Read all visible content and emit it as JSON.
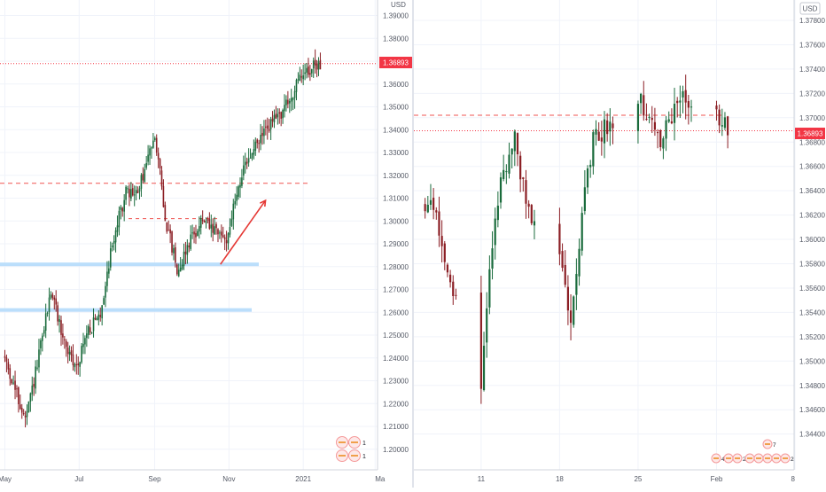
{
  "charts": [
    {
      "id": "left",
      "axis_unit": "USD",
      "y_ticks": [
        "1.39000",
        "1.38000",
        "1.37000",
        "1.36000",
        "1.35000",
        "1.34000",
        "1.33000",
        "1.32000",
        "1.31000",
        "1.30000",
        "1.29000",
        "1.28000",
        "1.27000",
        "1.26000",
        "1.25000",
        "1.24000",
        "1.23000",
        "1.22000",
        "1.21000",
        "1.20000"
      ],
      "x_ticks": [
        "May",
        "Jul",
        "Sep",
        "Nov",
        "2021",
        "Ma"
      ],
      "last_price_label": "1.36893",
      "badges": [
        {
          "text": "4"
        },
        {
          "text": "1"
        },
        {
          "text": "7"
        },
        {
          "text": "1"
        }
      ]
    },
    {
      "id": "right",
      "axis_unit": "USD",
      "y_ticks": [
        "1.37800",
        "1.37600",
        "1.37400",
        "1.37200",
        "1.37000",
        "1.36800",
        "1.36600",
        "1.36400",
        "1.36200",
        "1.36000",
        "1.35800",
        "1.35600",
        "1.35400",
        "1.35200",
        "1.35000",
        "1.34800",
        "1.34600",
        "1.34400"
      ],
      "x_ticks": [
        "11",
        "18",
        "25",
        "Feb",
        "8"
      ],
      "last_price_label": "1.36893",
      "badges": [
        {
          "text": "4"
        },
        {
          "text": "12"
        },
        {
          "text": "2"
        },
        {
          "text": "3"
        },
        {
          "text": "8"
        },
        {
          "text": "3"
        },
        {
          "text": "6"
        },
        {
          "text": "2"
        },
        {
          "text": "7"
        }
      ]
    }
  ],
  "chart_data": [
    {
      "type": "candlestick",
      "title": "",
      "symbol_currency": "USD",
      "timeframe_span": "May 2020 – Jan 2021",
      "x_labels": [
        "May",
        "Jul",
        "Sep",
        "Nov",
        "2021",
        "Ma"
      ],
      "ylim": [
        1.195,
        1.395
      ],
      "last_price": 1.36893,
      "price_path": [
        {
          "date": "2020-05-01",
          "close": 1.24
        },
        {
          "date": "2020-05-10",
          "close": 1.225
        },
        {
          "date": "2020-05-18",
          "close": 1.212
        },
        {
          "date": "2020-05-28",
          "close": 1.238
        },
        {
          "date": "2020-06-08",
          "close": 1.27
        },
        {
          "date": "2020-06-18",
          "close": 1.248
        },
        {
          "date": "2020-06-28",
          "close": 1.235
        },
        {
          "date": "2020-07-08",
          "close": 1.252
        },
        {
          "date": "2020-07-18",
          "close": 1.258
        },
        {
          "date": "2020-07-28",
          "close": 1.29
        },
        {
          "date": "2020-08-08",
          "close": 1.312
        },
        {
          "date": "2020-08-18",
          "close": 1.312
        },
        {
          "date": "2020-08-28",
          "close": 1.33
        },
        {
          "date": "2020-09-01",
          "close": 1.34
        },
        {
          "date": "2020-09-10",
          "close": 1.3
        },
        {
          "date": "2020-09-20",
          "close": 1.278
        },
        {
          "date": "2020-09-30",
          "close": 1.292
        },
        {
          "date": "2020-10-10",
          "close": 1.3
        },
        {
          "date": "2020-10-20",
          "close": 1.295
        },
        {
          "date": "2020-10-30",
          "close": 1.292
        },
        {
          "date": "2020-11-10",
          "close": 1.318
        },
        {
          "date": "2020-11-20",
          "close": 1.33
        },
        {
          "date": "2020-12-01",
          "close": 1.34
        },
        {
          "date": "2020-12-10",
          "close": 1.345
        },
        {
          "date": "2020-12-20",
          "close": 1.352
        },
        {
          "date": "2021-01-01",
          "close": 1.365
        },
        {
          "date": "2021-01-15",
          "close": 1.369
        }
      ],
      "annotations": {
        "support_zones": [
          1.281,
          1.261
        ],
        "resistance_dashed": [
          1.3165
        ],
        "short_dashed": [
          1.301
        ],
        "last_price_line": 1.36893,
        "arrow": {
          "from": [
            "2020-10-25",
            1.281
          ],
          "to": [
            "2020-12-01",
            1.309
          ]
        }
      }
    },
    {
      "type": "candlestick",
      "title": "",
      "symbol_currency": "USD",
      "timeframe_span": "Jan 2021 – Feb 2021",
      "x_labels": [
        "11",
        "18",
        "25",
        "Feb",
        "8"
      ],
      "ylim": [
        1.3425,
        1.3785
      ],
      "last_price": 1.36893,
      "price_path": [
        {
          "date": "2021-01-06",
          "close": 1.363
        },
        {
          "date": "2021-01-07",
          "close": 1.362
        },
        {
          "date": "2021-01-08",
          "close": 1.3575
        },
        {
          "date": "2021-01-11",
          "close": 1.348
        },
        {
          "date": "2021-01-12",
          "close": 1.36
        },
        {
          "date": "2021-01-13",
          "close": 1.366
        },
        {
          "date": "2021-01-14",
          "close": 1.368
        },
        {
          "date": "2021-01-15",
          "close": 1.363
        },
        {
          "date": "2021-01-18",
          "close": 1.358
        },
        {
          "date": "2021-01-19",
          "close": 1.354
        },
        {
          "date": "2021-01-20",
          "close": 1.362
        },
        {
          "date": "2021-01-21",
          "close": 1.368
        },
        {
          "date": "2021-01-22",
          "close": 1.369
        },
        {
          "date": "2021-01-25",
          "close": 1.372
        },
        {
          "date": "2021-01-26",
          "close": 1.37
        },
        {
          "date": "2021-01-27",
          "close": 1.368
        },
        {
          "date": "2021-01-28",
          "close": 1.37
        },
        {
          "date": "2021-01-29",
          "close": 1.372
        },
        {
          "date": "2021-02-01",
          "close": 1.37
        },
        {
          "date": "2021-02-02",
          "close": 1.369
        }
      ],
      "annotations": {
        "resistance_dashed": [
          1.3702
        ],
        "last_price_line": 1.36893
      }
    }
  ]
}
